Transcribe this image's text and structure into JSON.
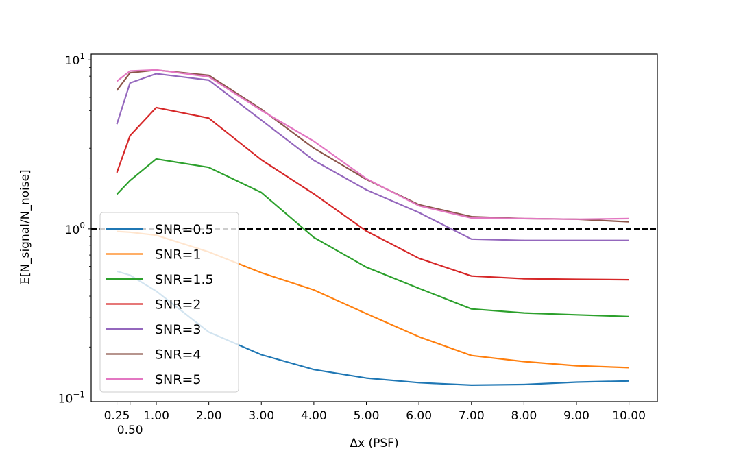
{
  "chart_data": {
    "type": "line",
    "title": "",
    "xlabel": "Δx (PSF)",
    "ylabel": "𝔼[N_signal/N_noise]",
    "yscale": "log",
    "xlim": [
      -0.24,
      10.54
    ],
    "ylim": [
      0.095,
      10.8
    ],
    "grid": false,
    "legend_placement": "lower-left",
    "x": [
      0.25,
      0.5,
      1,
      2,
      3,
      4,
      5,
      6,
      7,
      8,
      9,
      10
    ],
    "xtick_labels": [
      "0.25",
      "0.50",
      "1.00",
      "2.00",
      "3.00",
      "4.00",
      "5.00",
      "6.00",
      "7.00",
      "8.00",
      "9.00",
      "10.00"
    ],
    "ytick_labels": [
      {
        "value": 10,
        "base": "10",
        "exp": "1"
      },
      {
        "value": 1,
        "base": "10",
        "exp": "0"
      },
      {
        "value": 0.1,
        "base": "10",
        "exp": "−1"
      }
    ],
    "reference_line": {
      "y": 1,
      "style": "dashed",
      "color": "#000000"
    },
    "series": [
      {
        "name": "SNR=0.5",
        "color": "#1f77b4",
        "values": [
          0.561,
          0.532,
          0.428,
          0.245,
          0.18,
          0.147,
          0.131,
          0.123,
          0.119,
          0.12,
          0.124,
          0.126
        ]
      },
      {
        "name": "SNR=1",
        "color": "#ff7f0e",
        "values": [
          0.966,
          0.955,
          0.917,
          0.73,
          0.55,
          0.435,
          0.315,
          0.23,
          0.178,
          0.164,
          0.155,
          0.151
        ]
      },
      {
        "name": "SNR=1.5",
        "color": "#2ca02c",
        "values": [
          1.6,
          1.93,
          2.59,
          2.31,
          1.64,
          0.89,
          0.593,
          0.445,
          0.336,
          0.318,
          0.31,
          0.303
        ]
      },
      {
        "name": "SNR=2",
        "color": "#d62728",
        "values": [
          2.15,
          3.56,
          5.22,
          4.52,
          2.56,
          1.61,
          0.97,
          0.67,
          0.526,
          0.507,
          0.503,
          0.5
        ]
      },
      {
        "name": "SNR=3",
        "color": "#9467bd",
        "values": [
          4.16,
          7.3,
          8.28,
          7.58,
          4.4,
          2.54,
          1.7,
          1.25,
          0.87,
          0.855,
          0.855,
          0.855
        ]
      },
      {
        "name": "SNR=4",
        "color": "#8c564b",
        "values": [
          6.59,
          8.38,
          8.7,
          8.1,
          5.1,
          3.0,
          1.96,
          1.39,
          1.18,
          1.15,
          1.14,
          1.1
        ]
      },
      {
        "name": "SNR=5",
        "color": "#e377c2",
        "values": [
          7.47,
          8.59,
          8.73,
          7.94,
          5.02,
          3.3,
          1.98,
          1.37,
          1.16,
          1.15,
          1.14,
          1.15
        ]
      }
    ]
  }
}
